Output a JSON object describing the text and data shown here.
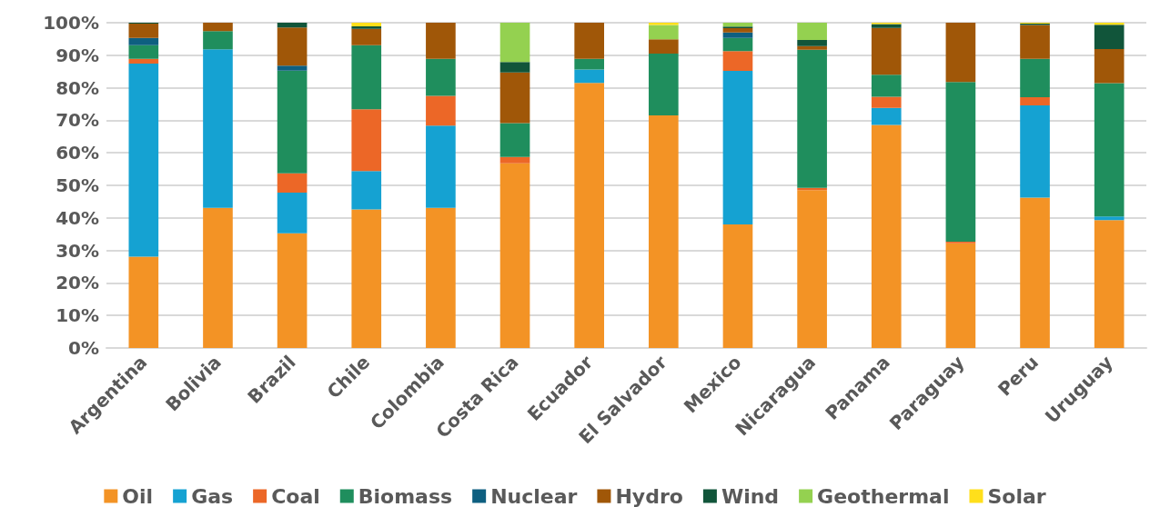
{
  "chart_data": {
    "type": "bar",
    "stacked": true,
    "grid": "y",
    "legend": "bottom",
    "categories": [
      "Argentina",
      "Bolivia",
      "Brazil",
      "Chile",
      "Colombia",
      "Costa Rica",
      "Ecuador",
      "El Salvador",
      "Mexico",
      "Nicaragua",
      "Panama",
      "Paraguay",
      "Peru",
      "Uruguay"
    ],
    "ylim": [
      0,
      100
    ],
    "yticks": [
      {
        "value": 0,
        "label": "0%"
      },
      {
        "value": 10,
        "label": "10%"
      },
      {
        "value": 20,
        "label": "20%"
      },
      {
        "value": 30,
        "label": "30%"
      },
      {
        "value": 40,
        "label": "40%"
      },
      {
        "value": 50,
        "label": "50%"
      },
      {
        "value": 60,
        "label": "60%"
      },
      {
        "value": 70,
        "label": "70%"
      },
      {
        "value": 80,
        "label": "80%"
      },
      {
        "value": 90,
        "label": "90%"
      },
      {
        "value": 100,
        "label": "100%"
      }
    ],
    "series": [
      {
        "name": "Oil",
        "color": "#f39325",
        "values": [
          28.1,
          43.1,
          35.3,
          42.6,
          43.1,
          56.8,
          81.5,
          71.5,
          38.0,
          48.5,
          68.6,
          32.2,
          46.2,
          39.3
        ]
      },
      {
        "name": "Gas",
        "color": "#15a2d2",
        "values": [
          59.3,
          48.7,
          12.5,
          11.8,
          25.3,
          0,
          4.1,
          0,
          47.2,
          0,
          5.2,
          0,
          28.4,
          1.1
        ]
      },
      {
        "name": "Coal",
        "color": "#ec6727",
        "values": [
          1.5,
          0,
          5.9,
          19.0,
          9.1,
          1.9,
          0,
          0,
          6.1,
          0.7,
          3.4,
          0.5,
          2.5,
          0
        ]
      },
      {
        "name": "Biomass",
        "color": "#1f8e5d",
        "values": [
          4.2,
          5.6,
          31.6,
          19.7,
          11.4,
          10.4,
          3.3,
          19.0,
          4.0,
          42.5,
          6.8,
          49.1,
          11.8,
          41.0
        ]
      },
      {
        "name": "Nuclear",
        "color": "#0e5f80",
        "values": [
          2.2,
          0,
          1.5,
          0,
          0,
          0,
          0,
          0,
          1.7,
          0,
          0,
          0,
          0,
          0
        ]
      },
      {
        "name": "Hydro",
        "color": "#a05708",
        "values": [
          4.4,
          2.6,
          11.7,
          5.0,
          11.1,
          15.6,
          11.1,
          4.4,
          1.3,
          1.1,
          14.4,
          18.2,
          10.4,
          10.5
        ]
      },
      {
        "name": "Wind",
        "color": "#11553a",
        "values": [
          0.3,
          0,
          1.5,
          0.8,
          0,
          3.2,
          0,
          0,
          0.5,
          1.9,
          1.2,
          0,
          0.4,
          7.5
        ]
      },
      {
        "name": "Geothermal",
        "color": "#94d150",
        "values": [
          0,
          0,
          0,
          0,
          0,
          12.1,
          0,
          4.4,
          1.2,
          5.3,
          0,
          0,
          0,
          0
        ]
      },
      {
        "name": "Solar",
        "color": "#ffdf1b",
        "values": [
          0,
          0,
          0,
          1.1,
          0,
          0,
          0,
          0.7,
          0,
          0,
          0.4,
          0,
          0.3,
          0.6
        ]
      }
    ]
  }
}
